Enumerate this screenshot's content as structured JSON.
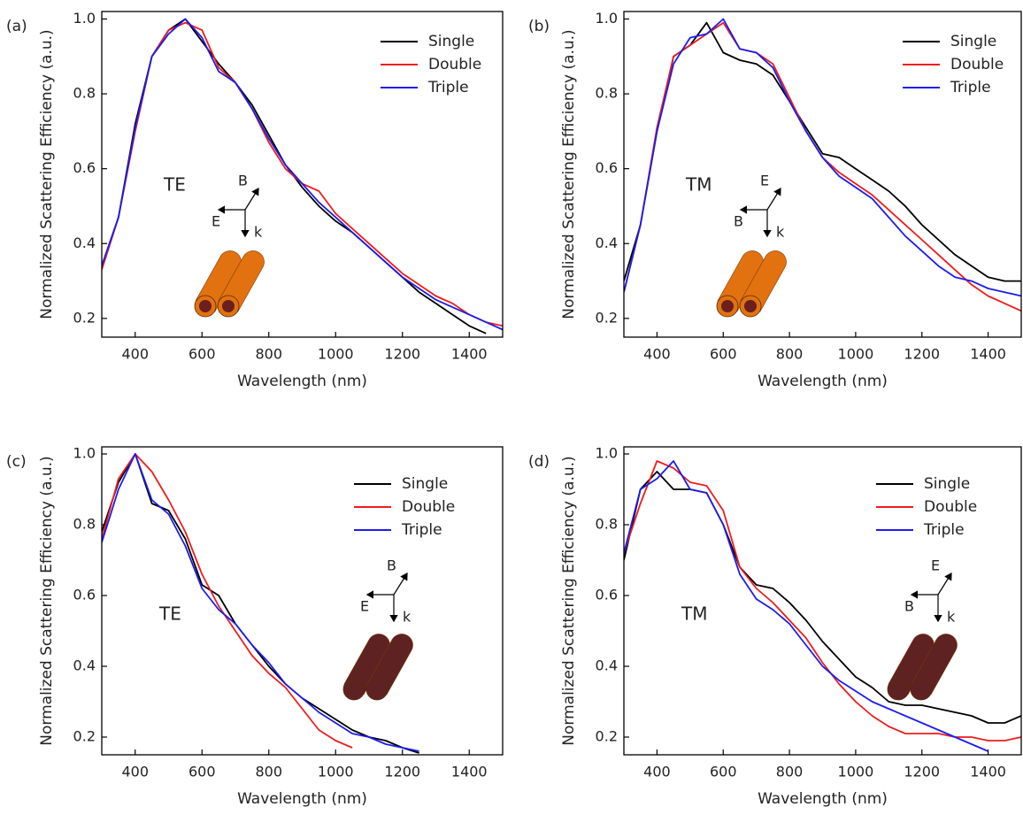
{
  "chart_data": [
    {
      "type": "line",
      "panel_label": "(a)",
      "annotation": "TE",
      "inset_labels": [
        "B",
        "E",
        "k"
      ],
      "inset_color": "#e2720f",
      "xlabel": "Wavelength (nm)",
      "ylabel": "Normalized Scattering Efficiency (a.u.)",
      "xlim": [
        300,
        1500
      ],
      "ylim": [
        0.15,
        1.02
      ],
      "xticks": [
        400,
        600,
        800,
        1000,
        1200,
        1400
      ],
      "yticks": [
        0.2,
        0.4,
        0.6,
        0.8,
        {
          "value": 1,
          "label": "1.0"
        }
      ],
      "legend": "upper right",
      "x": [
        300,
        350,
        400,
        450,
        500,
        550,
        600,
        650,
        700,
        750,
        800,
        850,
        900,
        950,
        1000,
        1050,
        1100,
        1150,
        1200,
        1250,
        1300,
        1350,
        1400,
        1450,
        1500
      ],
      "series": [
        {
          "name": "Single",
          "color": "#000000",
          "values": [
            0.34,
            0.47,
            0.72,
            0.9,
            0.97,
            1.0,
            0.94,
            0.88,
            0.83,
            0.77,
            0.69,
            0.61,
            0.55,
            0.5,
            0.46,
            0.43,
            0.39,
            0.35,
            0.31,
            0.27,
            0.24,
            0.21,
            0.18,
            0.16,
            null
          ]
        },
        {
          "name": "Double",
          "color": "#ee1c1c",
          "values": [
            0.33,
            0.47,
            0.7,
            0.9,
            0.97,
            0.99,
            0.97,
            0.87,
            0.83,
            0.76,
            0.67,
            0.6,
            0.56,
            0.54,
            0.48,
            0.44,
            0.4,
            0.36,
            0.32,
            0.29,
            0.26,
            0.24,
            0.21,
            0.19,
            0.18
          ]
        },
        {
          "name": "Triple",
          "color": "#1c1cee",
          "values": [
            0.34,
            0.47,
            0.71,
            0.9,
            0.96,
            1.0,
            0.95,
            0.86,
            0.83,
            0.76,
            0.68,
            0.61,
            0.56,
            0.51,
            0.47,
            0.43,
            0.39,
            0.35,
            0.31,
            0.28,
            0.25,
            0.23,
            0.21,
            0.19,
            0.17
          ]
        }
      ]
    },
    {
      "type": "line",
      "panel_label": "(b)",
      "annotation": "TM",
      "inset_labels": [
        "E",
        "B",
        "k"
      ],
      "inset_color": "#e2720f",
      "xlabel": "Wavelength (nm)",
      "ylabel": "Normalized Scattering Efficiency (a.u.)",
      "xlim": [
        300,
        1500
      ],
      "ylim": [
        0.15,
        1.02
      ],
      "xticks": [
        400,
        600,
        800,
        1000,
        1200,
        1400
      ],
      "yticks": [
        0.2,
        0.4,
        0.6,
        0.8,
        {
          "value": 1,
          "label": "1.0"
        }
      ],
      "legend": "upper right",
      "x": [
        300,
        350,
        400,
        450,
        500,
        550,
        600,
        650,
        700,
        750,
        800,
        850,
        900,
        950,
        1000,
        1050,
        1100,
        1150,
        1200,
        1250,
        1300,
        1350,
        1400,
        1450,
        1500
      ],
      "series": [
        {
          "name": "Single",
          "color": "#000000",
          "values": [
            0.3,
            0.45,
            0.7,
            0.9,
            0.93,
            0.99,
            0.91,
            0.89,
            0.88,
            0.85,
            0.78,
            0.71,
            0.64,
            0.63,
            0.6,
            0.57,
            0.54,
            0.5,
            0.45,
            0.41,
            0.37,
            0.34,
            0.31,
            0.3,
            0.3
          ]
        },
        {
          "name": "Double",
          "color": "#ee1c1c",
          "values": [
            0.27,
            0.45,
            0.71,
            0.9,
            0.93,
            0.96,
            0.99,
            0.92,
            0.91,
            0.88,
            0.79,
            0.7,
            0.63,
            0.59,
            0.56,
            0.53,
            0.49,
            0.45,
            0.41,
            0.37,
            0.33,
            0.29,
            0.26,
            0.24,
            0.22
          ]
        },
        {
          "name": "Triple",
          "color": "#1c1cee",
          "values": [
            0.27,
            0.45,
            0.7,
            0.88,
            0.95,
            0.96,
            1.0,
            0.92,
            0.91,
            0.87,
            0.78,
            0.7,
            0.63,
            0.58,
            0.55,
            0.52,
            0.47,
            0.42,
            0.38,
            0.34,
            0.31,
            0.3,
            0.28,
            0.27,
            0.26
          ]
        }
      ]
    },
    {
      "type": "line",
      "panel_label": "(c)",
      "annotation": "TE",
      "inset_labels": [
        "B",
        "E",
        "k"
      ],
      "inset_color": "#5e2222",
      "xlabel": "Wavelength (nm)",
      "ylabel": "Normalized Scattering Efficiency (a.u.)",
      "xlim": [
        300,
        1500
      ],
      "ylim": [
        0.15,
        1.02
      ],
      "xticks": [
        400,
        600,
        800,
        1000,
        1200,
        1400
      ],
      "yticks": [
        0.2,
        0.4,
        0.6,
        0.8,
        {
          "value": 1,
          "label": "1.0"
        }
      ],
      "legend": "upper right",
      "x": [
        300,
        350,
        400,
        450,
        500,
        550,
        600,
        650,
        700,
        750,
        800,
        850,
        900,
        950,
        1000,
        1050,
        1100,
        1150,
        1200,
        1250,
        1300,
        1350,
        1400,
        1450,
        1500
      ],
      "series": [
        {
          "name": "Single",
          "color": "#000000",
          "values": [
            0.78,
            0.92,
            1.0,
            0.86,
            0.84,
            0.76,
            0.63,
            0.6,
            0.52,
            0.46,
            0.4,
            0.35,
            0.31,
            0.28,
            0.25,
            0.22,
            0.2,
            0.19,
            0.17,
            0.155,
            null,
            null,
            null,
            null,
            null
          ]
        },
        {
          "name": "Double",
          "color": "#ee1c1c",
          "values": [
            0.76,
            0.93,
            1.0,
            0.95,
            0.87,
            0.78,
            0.66,
            0.57,
            0.5,
            0.43,
            0.38,
            0.34,
            0.28,
            0.22,
            0.19,
            0.17,
            null,
            null,
            null,
            null,
            null,
            null,
            null,
            null,
            null
          ]
        },
        {
          "name": "Triple",
          "color": "#1c1cee",
          "values": [
            0.75,
            0.9,
            1.0,
            0.87,
            0.83,
            0.74,
            0.62,
            0.56,
            0.52,
            0.46,
            0.41,
            0.35,
            0.31,
            0.27,
            0.24,
            0.21,
            0.2,
            0.18,
            0.17,
            0.16,
            null,
            null,
            null,
            null,
            null
          ]
        }
      ]
    },
    {
      "type": "line",
      "panel_label": "(d)",
      "annotation": "TM",
      "inset_labels": [
        "E",
        "B",
        "k"
      ],
      "inset_color": "#5e2222",
      "xlabel": "Wavelength (nm)",
      "ylabel": "Normalized Scattering Efficiency (a.u.)",
      "xlim": [
        300,
        1500
      ],
      "ylim": [
        0.15,
        1.02
      ],
      "xticks": [
        400,
        600,
        800,
        1000,
        1200,
        1400
      ],
      "yticks": [
        0.2,
        0.4,
        0.6,
        0.8,
        {
          "value": 1,
          "label": "1.0"
        }
      ],
      "legend": "upper right",
      "x": [
        300,
        350,
        400,
        450,
        500,
        550,
        600,
        650,
        700,
        750,
        800,
        850,
        900,
        950,
        1000,
        1050,
        1100,
        1150,
        1200,
        1250,
        1300,
        1350,
        1400,
        1450,
        1500
      ],
      "series": [
        {
          "name": "Single",
          "color": "#000000",
          "values": [
            0.7,
            0.9,
            0.95,
            0.9,
            0.9,
            0.89,
            0.8,
            0.68,
            0.63,
            0.62,
            0.58,
            0.53,
            0.47,
            0.42,
            0.37,
            0.34,
            0.3,
            0.29,
            0.29,
            0.28,
            0.27,
            0.26,
            0.24,
            0.24,
            0.26
          ]
        },
        {
          "name": "Double",
          "color": "#ee1c1c",
          "values": [
            0.72,
            0.86,
            0.98,
            0.96,
            0.92,
            0.91,
            0.84,
            0.68,
            0.62,
            0.58,
            0.53,
            0.48,
            0.41,
            0.35,
            0.3,
            0.26,
            0.23,
            0.21,
            0.21,
            0.21,
            0.2,
            0.2,
            0.19,
            0.19,
            0.2
          ]
        },
        {
          "name": "Triple",
          "color": "#1c1cee",
          "values": [
            0.72,
            0.9,
            0.93,
            0.98,
            0.9,
            0.89,
            0.8,
            0.66,
            0.59,
            0.56,
            0.52,
            0.46,
            0.4,
            0.36,
            0.33,
            0.3,
            0.28,
            0.26,
            0.24,
            0.22,
            0.2,
            0.18,
            0.16,
            null,
            null
          ]
        }
      ]
    }
  ]
}
